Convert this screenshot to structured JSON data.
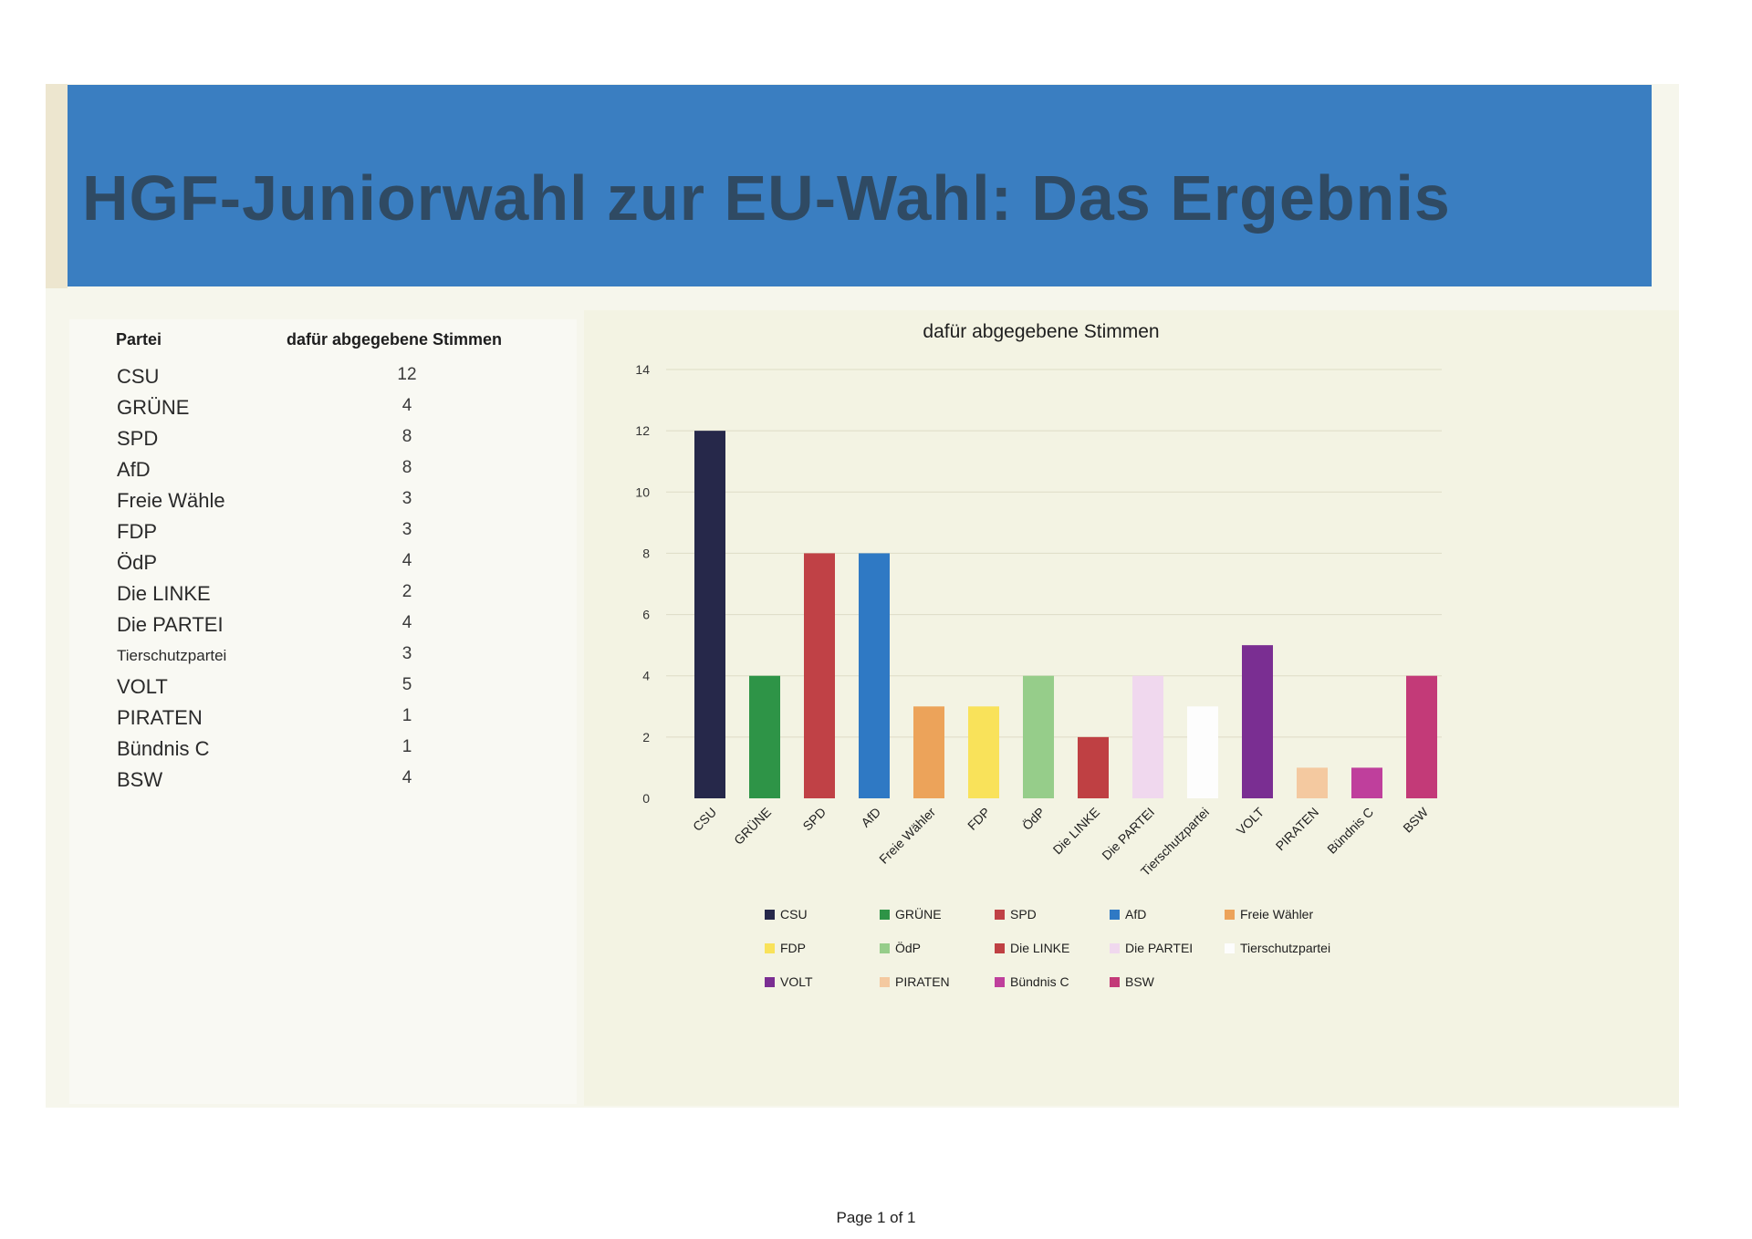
{
  "title": "HGF-Juniorwahl zur EU-Wahl: Das Ergebnis",
  "table": {
    "headers": [
      "Partei",
      "dafür abgegebene Stimmen"
    ],
    "rows": [
      {
        "party": "CSU",
        "votes": "12"
      },
      {
        "party": "GRÜNE",
        "votes": "4"
      },
      {
        "party": "SPD",
        "votes": "8"
      },
      {
        "party": "AfD",
        "votes": "8"
      },
      {
        "party": "Freie Wähler",
        "votes": "3"
      },
      {
        "party": "FDP",
        "votes": "3"
      },
      {
        "party": "ÖdP",
        "votes": "4"
      },
      {
        "party": "Die LINKE",
        "votes": "2"
      },
      {
        "party": "Die PARTEI",
        "votes": "4"
      },
      {
        "party": "Tierschutzpartei",
        "votes": "3"
      },
      {
        "party": "VOLT",
        "votes": "5"
      },
      {
        "party": "PIRATEN",
        "votes": "1"
      },
      {
        "party": "Bündnis C",
        "votes": "1"
      },
      {
        "party": "BSW",
        "votes": "4"
      }
    ]
  },
  "chart_data": {
    "type": "bar",
    "title": "dafür abgegebene Stimmen",
    "categories": [
      "CSU",
      "GRÜNE",
      "SPD",
      "AfD",
      "Freie Wähler",
      "FDP",
      "ÖdP",
      "Die LINKE",
      "Die PARTEI",
      "Tierschutzpartei",
      "VOLT",
      "PIRATEN",
      "Bündnis C",
      "BSW"
    ],
    "values": [
      12,
      4,
      8,
      8,
      3,
      3,
      4,
      2,
      4,
      3,
      5,
      1,
      1,
      4
    ],
    "colors": [
      "#26284a",
      "#2e9447",
      "#c04146",
      "#2f79c4",
      "#eca35a",
      "#f9e25a",
      "#96cd8a",
      "#bf4043",
      "#f0d8ee",
      "#fdfdfd",
      "#7a2e92",
      "#f4c9a0",
      "#bf3f9c",
      "#c33a78"
    ],
    "ylim": [
      0,
      14
    ],
    "yticks": [
      "0",
      "2",
      "4",
      "6",
      "8",
      "10",
      "12",
      "14"
    ],
    "grid": true,
    "legend": "bottom"
  },
  "footer": "Page 1 of 1"
}
